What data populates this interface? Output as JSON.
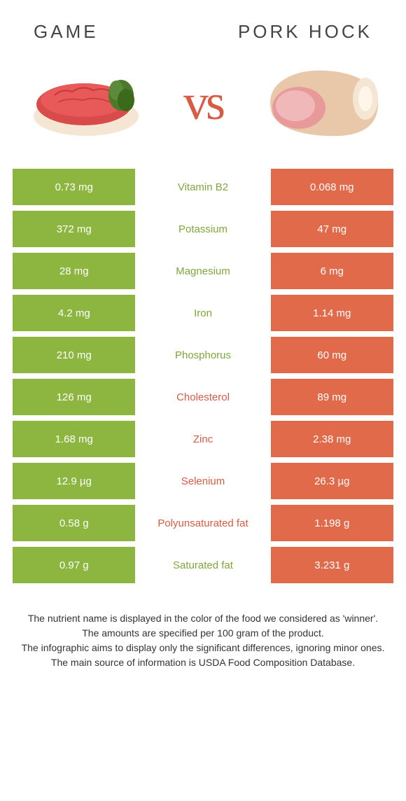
{
  "colors": {
    "green": "#8cb63f",
    "orange": "#e06a4a",
    "green_text": "#7fa63a",
    "orange_text": "#d95b43"
  },
  "header": {
    "left_title": "Game",
    "right_title": "Pork hock",
    "vs_label": "vs"
  },
  "rows": [
    {
      "left": "0.73 mg",
      "label": "Vitamin B2",
      "right": "0.068 mg",
      "winner": "left"
    },
    {
      "left": "372 mg",
      "label": "Potassium",
      "right": "47 mg",
      "winner": "left"
    },
    {
      "left": "28 mg",
      "label": "Magnesium",
      "right": "6 mg",
      "winner": "left"
    },
    {
      "left": "4.2 mg",
      "label": "Iron",
      "right": "1.14 mg",
      "winner": "left"
    },
    {
      "left": "210 mg",
      "label": "Phosphorus",
      "right": "60 mg",
      "winner": "left"
    },
    {
      "left": "126 mg",
      "label": "Cholesterol",
      "right": "89 mg",
      "winner": "right"
    },
    {
      "left": "1.68 mg",
      "label": "Zinc",
      "right": "2.38 mg",
      "winner": "right"
    },
    {
      "left": "12.9 µg",
      "label": "Selenium",
      "right": "26.3 µg",
      "winner": "right"
    },
    {
      "left": "0.58 g",
      "label": "Polyunsaturated fat",
      "right": "1.198 g",
      "winner": "right"
    },
    {
      "left": "0.97 g",
      "label": "Saturated fat",
      "right": "3.231 g",
      "winner": "left"
    }
  ],
  "footer": {
    "line1": "The nutrient name is displayed in the color of the food we considered as 'winner'.",
    "line2": "The amounts are specified per 100 gram of the product.",
    "line3": "The infographic aims to display only the significant differences, ignoring minor ones.",
    "line4": "The main source of information is USDA Food Composition Database."
  }
}
